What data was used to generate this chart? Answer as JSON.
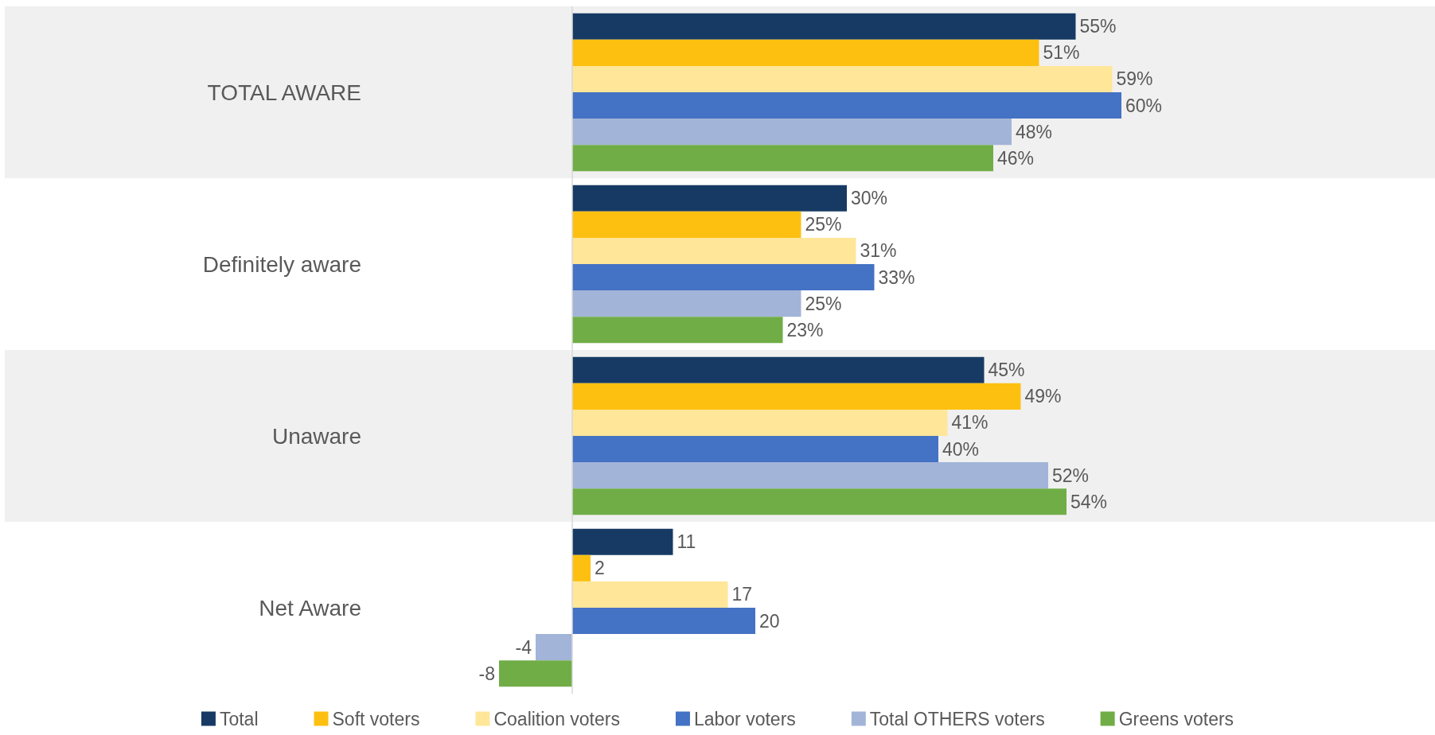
{
  "chart_data": {
    "type": "bar",
    "orientation": "horizontal",
    "categories": [
      "TOTAL AWARE",
      "Definitely aware",
      "Unaware",
      "Net Aware"
    ],
    "series": [
      {
        "name": "Total",
        "color": "#173a64",
        "values": [
          55,
          30,
          45,
          11
        ],
        "value_labels": [
          "55%",
          "30%",
          "45%",
          "11"
        ]
      },
      {
        "name": "Soft voters",
        "color": "#fdc010",
        "values": [
          51,
          25,
          49,
          2
        ],
        "value_labels": [
          "51%",
          "25%",
          "49%",
          "2"
        ]
      },
      {
        "name": "Coalition voters",
        "color": "#ffe699",
        "values": [
          59,
          31,
          41,
          17
        ],
        "value_labels": [
          "59%",
          "31%",
          "41%",
          "17"
        ]
      },
      {
        "name": "Labor voters",
        "color": "#4472c4",
        "values": [
          60,
          33,
          40,
          20
        ],
        "value_labels": [
          "60%",
          "33%",
          "40%",
          "20"
        ]
      },
      {
        "name": "Total OTHERS voters",
        "color": "#a2b4d8",
        "values": [
          48,
          25,
          52,
          -4
        ],
        "value_labels": [
          "48%",
          "25%",
          "52%",
          "-4"
        ]
      },
      {
        "name": "Greens voters",
        "color": "#70ad47",
        "values": [
          46,
          23,
          54,
          -8
        ],
        "value_labels": [
          "46%",
          "23%",
          "54%",
          "-8"
        ]
      }
    ],
    "bands": [
      {
        "axis": "y",
        "from": "TOTAL AWARE",
        "to": "TOTAL AWARE",
        "color": "#f0f0f0"
      },
      {
        "axis": "y",
        "from": "Unaware",
        "to": "Unaware",
        "color": "#f0f0f0"
      }
    ],
    "legend": "bottom"
  }
}
